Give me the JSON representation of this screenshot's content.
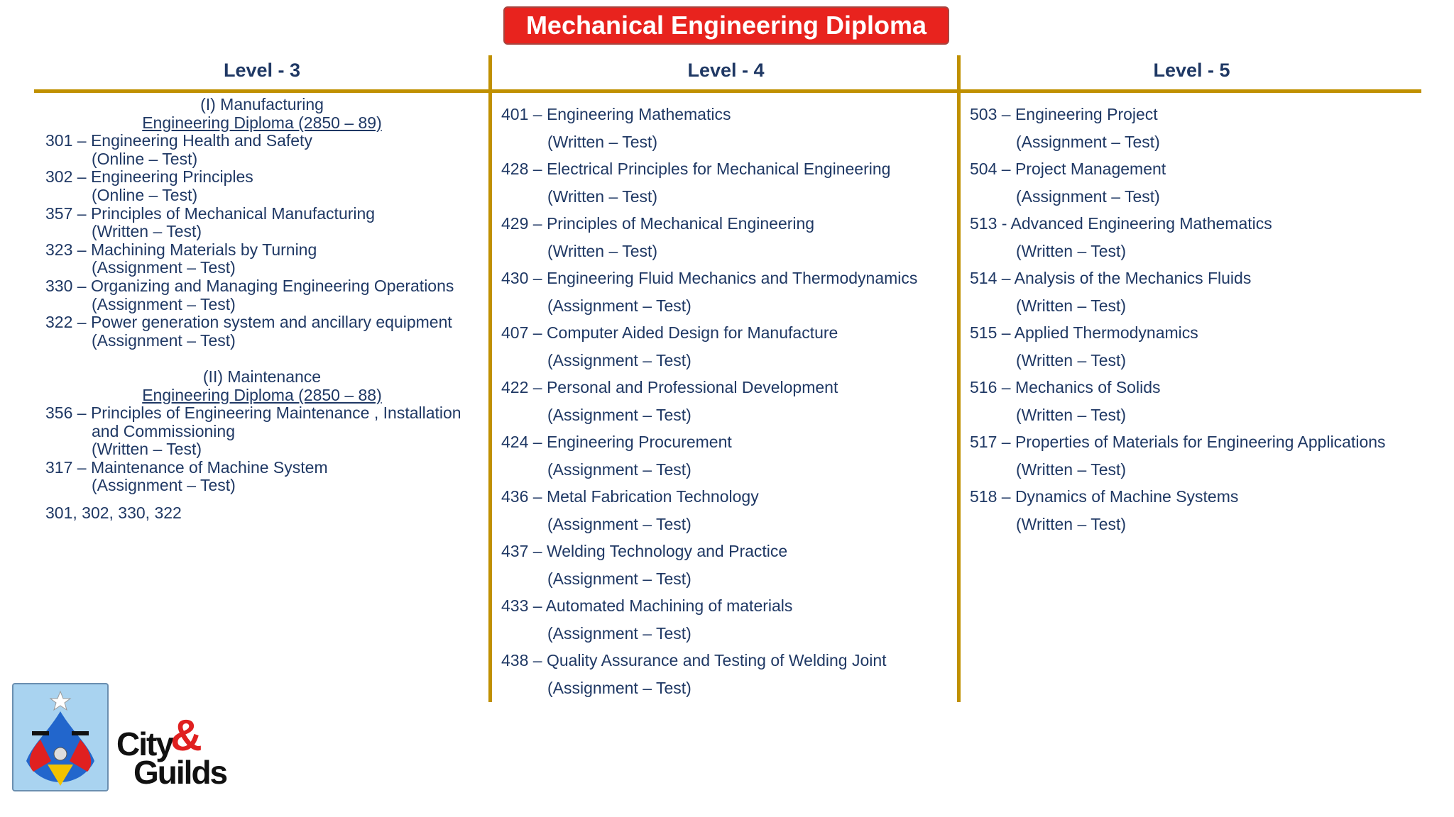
{
  "title": "Mechanical Engineering Diploma",
  "columns": [
    {
      "heading": "Level - 3",
      "sections": [
        {
          "title": "(I) Manufacturing",
          "subtitle": "Engineering Diploma (2850 – 89)",
          "units": [
            {
              "name": "301 – Engineering Health and Safety",
              "assessment": "(Online – Test)"
            },
            {
              "name": "302 – Engineering Principles",
              "assessment": "(Online – Test)"
            },
            {
              "name": "357 – Principles of Mechanical Manufacturing",
              "assessment": "(Written – Test)"
            },
            {
              "name": "323 – Machining Materials by Turning",
              "assessment": "(Assignment – Test)"
            },
            {
              "name": "330 – Organizing and Managing Engineering Operations",
              "assessment": "(Assignment – Test)"
            },
            {
              "name": "322 – Power generation system and ancillary equipment",
              "assessment": "(Assignment – Test)"
            }
          ]
        },
        {
          "title": "(II) Maintenance",
          "subtitle": "Engineering Diploma (2850 – 88)",
          "units": [
            {
              "name": "356 – Principles of Engineering Maintenance , Installation and Commissioning",
              "assessment": "(Written – Test)"
            },
            {
              "name": "317 – Maintenance of Machine System",
              "assessment": "(Assignment – Test)"
            }
          ]
        }
      ],
      "note": "301, 302, 330, 322"
    },
    {
      "heading": "Level - 4",
      "units": [
        {
          "name": "401 – Engineering Mathematics",
          "assessment": "(Written – Test)"
        },
        {
          "name": "428 – Electrical Principles for Mechanical Engineering",
          "assessment": "(Written – Test)"
        },
        {
          "name": "429 – Principles of Mechanical Engineering",
          "assessment": "(Written – Test)"
        },
        {
          "name": "430 – Engineering Fluid Mechanics and Thermodynamics",
          "assessment": "(Assignment – Test)"
        },
        {
          "name": "407 – Computer Aided Design for Manufacture",
          "assessment": "(Assignment – Test)"
        },
        {
          "name": "422 – Personal and Professional Development",
          "assessment": "(Assignment – Test)"
        },
        {
          "name": "424 – Engineering Procurement",
          "assessment": "(Assignment – Test)"
        },
        {
          "name": "436 – Metal Fabrication Technology",
          "assessment": "(Assignment – Test)"
        },
        {
          "name": "437 – Welding Technology and Practice",
          "assessment": "(Assignment – Test)"
        },
        {
          "name": "433 – Automated Machining of materials",
          "assessment": "(Assignment – Test)"
        },
        {
          "name": "438 – Quality Assurance and Testing of Welding Joint",
          "assessment": "(Assignment – Test)"
        }
      ]
    },
    {
      "heading": "Level - 5",
      "units": [
        {
          "name": "503 – Engineering Project",
          "assessment": "(Assignment – Test)"
        },
        {
          "name": "504 – Project Management",
          "assessment": "(Assignment – Test)"
        },
        {
          "name": "513 - Advanced Engineering Mathematics",
          "assessment": "(Written – Test)"
        },
        {
          "name": "514 – Analysis of the Mechanics Fluids",
          "assessment": "(Written – Test)"
        },
        {
          "name": "515 – Applied Thermodynamics",
          "assessment": "(Written – Test)"
        },
        {
          "name": "516 – Mechanics of Solids",
          "assessment": "(Written – Test)"
        },
        {
          "name": "517 – Properties of Materials for Engineering Applications",
          "assessment": "(Written – Test)"
        },
        {
          "name": "518 – Dynamics of Machine Systems",
          "assessment": "(Written – Test)"
        }
      ]
    }
  ],
  "logo": {
    "line1": "City",
    "ampersand": "&",
    "line2": "Guilds"
  }
}
